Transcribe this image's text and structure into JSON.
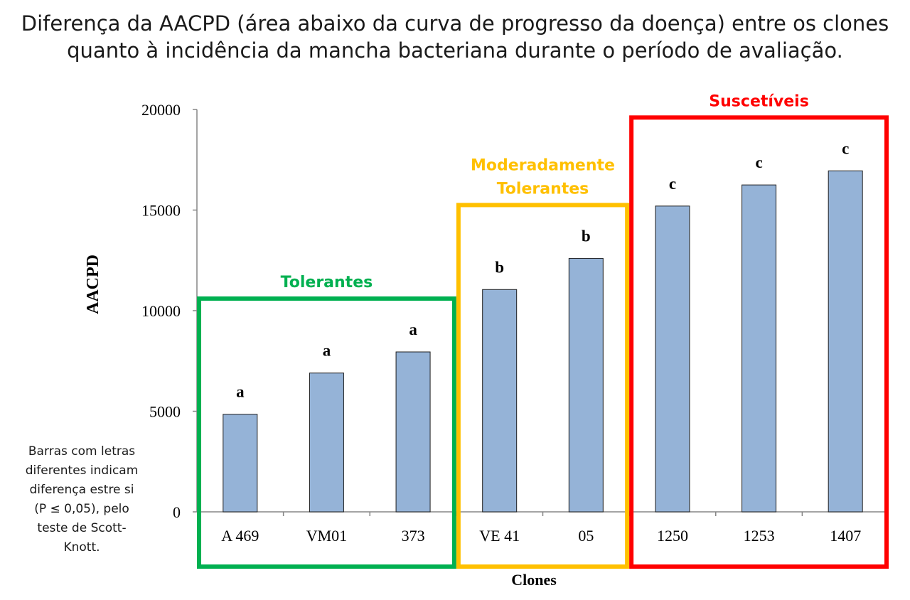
{
  "title_line1": "Diferença da AACPD (área abaixo da curva de progresso da doença) entre os clones",
  "title_line2": "quanto à incidência da mancha bacteriana durante o período de avaliação.",
  "note_lines": [
    "Barras com letras",
    "diferentes indicam",
    "diferença estre si",
    "(P ≤ 0,05), pelo",
    "teste de Scott-",
    "Knott."
  ],
  "chart_data": {
    "type": "bar",
    "xlabel": "Clones",
    "ylabel": "AACPD",
    "ylim": [
      0,
      20000
    ],
    "yticks": [
      0,
      5000,
      10000,
      15000,
      20000
    ],
    "categories": [
      "A 469",
      "VM01",
      "373",
      "VE 41",
      "05",
      "1250",
      "1253",
      "1407"
    ],
    "values": [
      4850,
      6900,
      7950,
      11050,
      12600,
      15200,
      16250,
      16950
    ],
    "letters": [
      "a",
      "a",
      "a",
      "b",
      "b",
      "c",
      "c",
      "c"
    ],
    "bar_color": "#95b3d7",
    "groups": [
      {
        "label_lines": [
          "Tolerantes"
        ],
        "color": "#00b050",
        "start": 0,
        "end": 2
      },
      {
        "label_lines": [
          "Moderadamente",
          "Tolerantes"
        ],
        "color": "#ffc000",
        "start": 3,
        "end": 4
      },
      {
        "label_lines": [
          "Suscetíveis"
        ],
        "color": "#ff0000",
        "start": 5,
        "end": 7
      }
    ]
  }
}
